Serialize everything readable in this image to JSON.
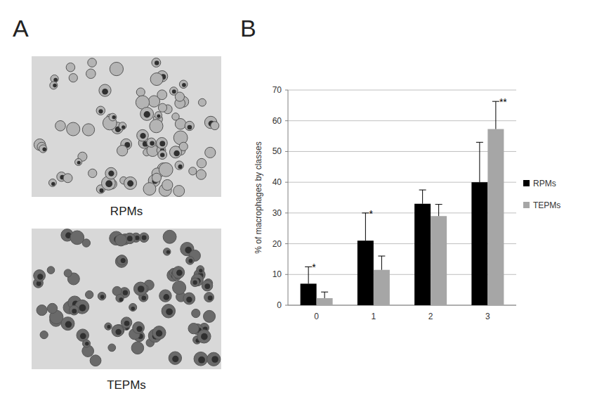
{
  "figure": {
    "panel_labels": [
      "A",
      "B"
    ],
    "image_captions": [
      "RPMs",
      "TEPMs"
    ]
  },
  "chart_data": {
    "type": "bar",
    "y_label": "% of macrophages by classes",
    "categories": [
      "0",
      "1",
      "2",
      "3"
    ],
    "series": [
      {
        "name": "RPMs",
        "color": "#000000",
        "values": [
          7,
          21,
          33,
          40
        ],
        "errors": [
          5.5,
          9,
          4.5,
          13
        ]
      },
      {
        "name": "TEPMs",
        "color": "#a6a6a6",
        "values": [
          2.3,
          11.5,
          29,
          57.3
        ],
        "errors": [
          2,
          4.5,
          3.8,
          9
        ]
      }
    ],
    "ylim": [
      0,
      70
    ],
    "yticks": [
      0,
      10,
      20,
      30,
      40,
      50,
      60,
      70
    ],
    "grid": true,
    "legend": "right",
    "annotations": [
      {
        "text": "*",
        "category": "0",
        "series": "RPMs"
      },
      {
        "text": "*",
        "category": "1",
        "series": "RPMs"
      },
      {
        "text": "**",
        "category": "3",
        "series": "TEPMs"
      }
    ]
  }
}
